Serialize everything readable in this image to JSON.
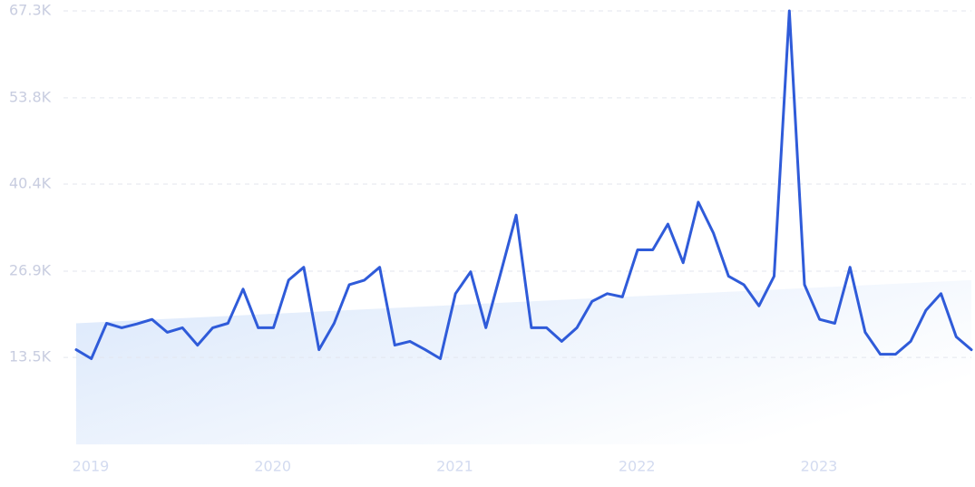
{
  "chart_data": {
    "type": "line",
    "categories": [
      "2019",
      null,
      null,
      null,
      null,
      null,
      null,
      null,
      null,
      null,
      null,
      null,
      "2020",
      null,
      null,
      null,
      null,
      null,
      null,
      null,
      null,
      null,
      null,
      null,
      "2021",
      null,
      null,
      null,
      null,
      null,
      null,
      null,
      null,
      null,
      null,
      null,
      "2022",
      null,
      null,
      null,
      null,
      null,
      null,
      null,
      null,
      null,
      null,
      null,
      "2023",
      null,
      null,
      null,
      null,
      null,
      null,
      null,
      null,
      null,
      null,
      null
    ],
    "values": [
      14700,
      13300,
      18800,
      18100,
      18700,
      19400,
      17400,
      18100,
      15400,
      18100,
      18800,
      24100,
      18100,
      18100,
      25500,
      27500,
      14700,
      18800,
      24800,
      25500,
      27500,
      15400,
      16000,
      14700,
      13300,
      23400,
      26800,
      18100,
      26800,
      35600,
      18100,
      18100,
      16000,
      18100,
      22200,
      23400,
      22900,
      30200,
      30200,
      34200,
      28200,
      37600,
      32800,
      26100,
      24800,
      21500,
      26100,
      67300,
      24800,
      19400,
      18800,
      27500,
      17400,
      14000,
      14000,
      16000,
      20800,
      23400,
      16700,
      14700
    ],
    "color": "#2f5bd9",
    "trend": [
      18800,
      25500
    ],
    "ylim": [
      0,
      67300
    ],
    "yticks": [
      {
        "value": 13500,
        "label": "13.5K"
      },
      {
        "value": 26900,
        "label": "26.9K"
      },
      {
        "value": 40400,
        "label": "40.4K"
      },
      {
        "value": 53800,
        "label": "53.8K"
      },
      {
        "value": 67300,
        "label": "67.3K"
      }
    ],
    "grid": true
  }
}
